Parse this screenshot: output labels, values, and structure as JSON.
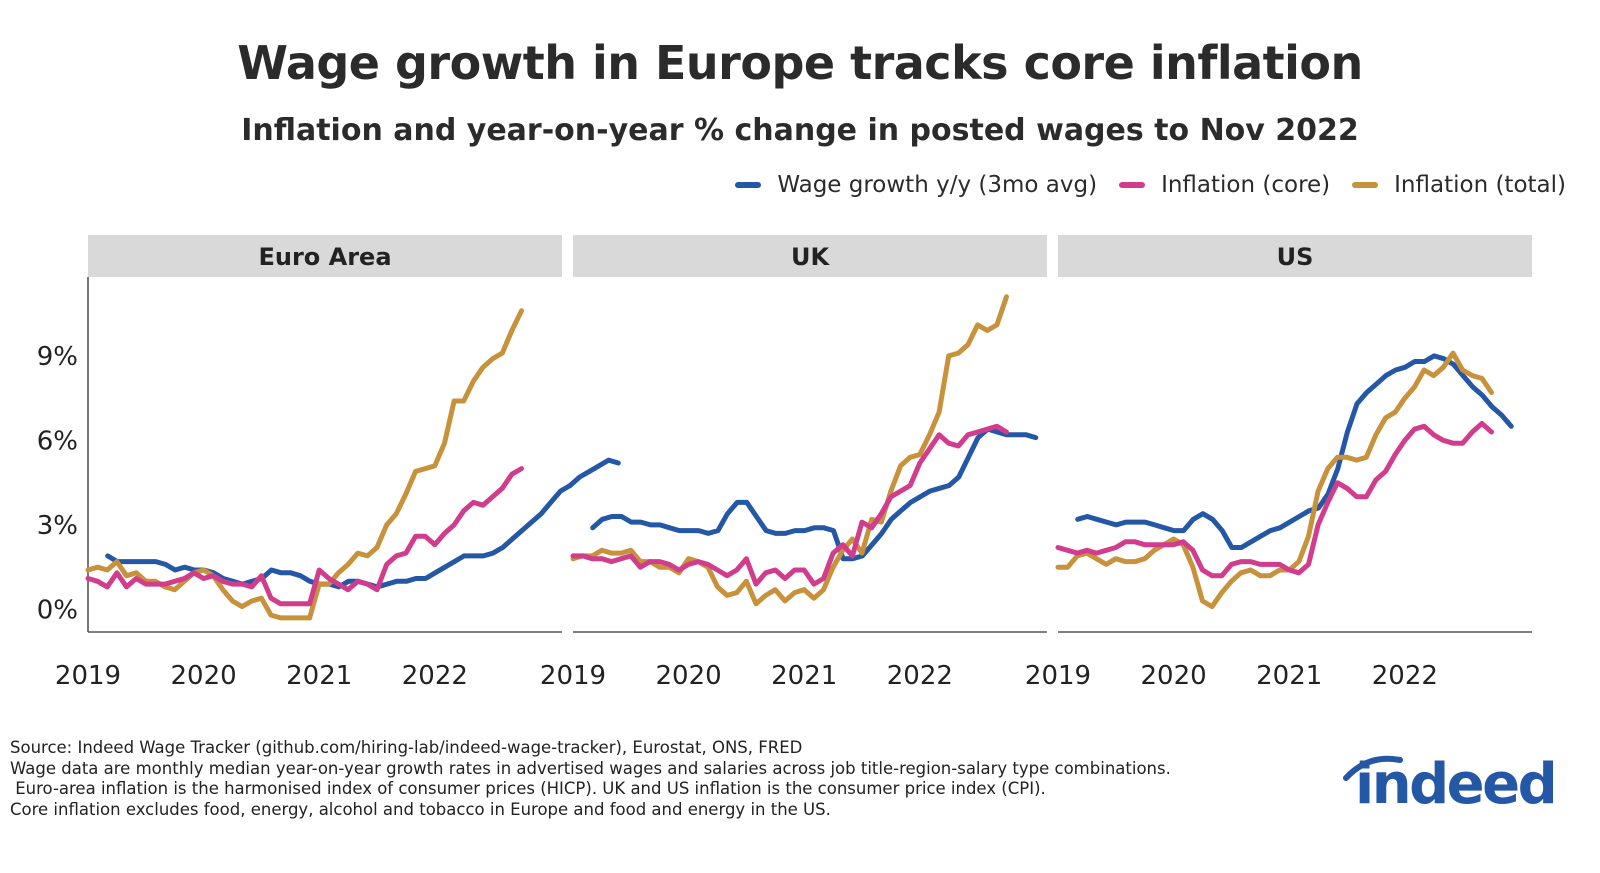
{
  "title": "Wage growth in Europe tracks core inflation",
  "subtitle": "Inflation and year-on-year % change in posted wages to Nov 2022",
  "legend": [
    {
      "label": "Wage growth y/y (3mo avg)",
      "color": "#2557a7"
    },
    {
      "label": "Inflation (core)",
      "color": "#d13d8c"
    },
    {
      "label": "Inflation (total)",
      "color": "#c8913b"
    }
  ],
  "notes": [
    "Source: Indeed Wage Tracker (github.com/hiring-lab/indeed-wage-tracker), Eurostat, ONS, FRED",
    "Wage data are monthly median year-on-year growth rates in advertised wages and salaries across job title-region-salary type combinations.",
    " Euro-area inflation is the harmonised index of consumer prices (HICP). UK and US inflation is the consumer price index (CPI).",
    "Core inflation excludes food, energy, alcohol and tobacco in Europe and food and energy in the US."
  ],
  "logo": "indeed",
  "chart_data": [
    {
      "type": "line",
      "panel": "Euro Area",
      "xlim": [
        2019,
        2023.1
      ],
      "ylim": [
        -0.8,
        11.8
      ],
      "x_ticks": [
        2019,
        2020,
        2021,
        2022
      ],
      "x_tick_labels": [
        "2019",
        "2020",
        "2021",
        "2022"
      ],
      "y_ticks": [
        0,
        3,
        6,
        9
      ],
      "y_tick_labels": [
        "0%",
        "3%",
        "6%",
        "9%"
      ],
      "series": [
        {
          "name": "Wage growth y/y (3mo avg)",
          "color": "#2557a7",
          "start": 2019.17,
          "values": [
            1.9,
            1.7,
            1.7,
            1.7,
            1.7,
            1.7,
            1.6,
            1.4,
            1.5,
            1.4,
            1.4,
            1.3,
            1.1,
            1.0,
            0.9,
            1.0,
            1.1,
            1.4,
            1.3,
            1.3,
            1.2,
            1.0,
            0.9,
            0.9,
            0.8,
            1.0,
            1.0,
            0.9,
            0.8,
            0.9,
            1.0,
            1.0,
            1.1,
            1.1,
            1.3,
            1.5,
            1.7,
            1.9,
            1.9,
            1.9,
            2.0,
            2.2,
            2.5,
            2.8,
            3.1,
            3.4,
            3.8,
            4.2,
            4.4,
            4.7,
            4.9,
            5.1,
            5.3,
            5.2
          ]
        },
        {
          "name": "Inflation (core)",
          "color": "#d13d8c",
          "start": 2019.0,
          "values": [
            1.1,
            1.0,
            0.8,
            1.3,
            0.8,
            1.1,
            0.9,
            0.9,
            0.9,
            1.0,
            1.1,
            1.3,
            1.1,
            1.2,
            1.0,
            0.9,
            0.9,
            0.8,
            1.2,
            0.4,
            0.2,
            0.2,
            0.2,
            0.2,
            1.4,
            1.1,
            0.9,
            0.7,
            1.0,
            0.9,
            0.7,
            1.6,
            1.9,
            2.0,
            2.6,
            2.6,
            2.3,
            2.7,
            3.0,
            3.5,
            3.8,
            3.7,
            4.0,
            4.3,
            4.8,
            5.0
          ]
        },
        {
          "name": "Inflation (total)",
          "color": "#c8913b",
          "start": 2019.0,
          "values": [
            1.4,
            1.5,
            1.4,
            1.7,
            1.2,
            1.3,
            1.0,
            1.0,
            0.8,
            0.7,
            1.0,
            1.3,
            1.4,
            1.2,
            0.7,
            0.3,
            0.1,
            0.3,
            0.4,
            -0.2,
            -0.3,
            -0.3,
            -0.3,
            -0.3,
            0.9,
            0.9,
            1.3,
            1.6,
            2.0,
            1.9,
            2.2,
            3.0,
            3.4,
            4.1,
            4.9,
            5.0,
            5.1,
            5.9,
            7.4,
            7.4,
            8.1,
            8.6,
            8.9,
            9.1,
            9.9,
            10.6
          ]
        }
      ]
    },
    {
      "type": "line",
      "panel": "UK",
      "xlim": [
        2019,
        2023.1
      ],
      "ylim": [
        -0.8,
        11.8
      ],
      "x_ticks": [
        2019,
        2020,
        2021,
        2022
      ],
      "x_tick_labels": [
        "2019",
        "2020",
        "2021",
        "2022"
      ],
      "y_ticks": [
        0,
        3,
        6,
        9
      ],
      "y_tick_labels": [
        "0%",
        "3%",
        "6%",
        "9%"
      ],
      "series": [
        {
          "name": "Wage growth y/y (3mo avg)",
          "color": "#2557a7",
          "start": 2019.17,
          "values": [
            2.9,
            3.2,
            3.3,
            3.3,
            3.1,
            3.1,
            3.0,
            3.0,
            2.9,
            2.8,
            2.8,
            2.8,
            2.7,
            2.8,
            3.4,
            3.8,
            3.8,
            3.3,
            2.8,
            2.7,
            2.7,
            2.8,
            2.8,
            2.9,
            2.9,
            2.8,
            1.8,
            1.8,
            1.9,
            2.3,
            2.7,
            3.2,
            3.5,
            3.8,
            4.0,
            4.2,
            4.3,
            4.4,
            4.7,
            5.4,
            6.1,
            6.4,
            6.3,
            6.2,
            6.2,
            6.2,
            6.1
          ]
        },
        {
          "name": "Inflation (core)",
          "color": "#d13d8c",
          "start": 2019.0,
          "values": [
            1.9,
            1.9,
            1.8,
            1.8,
            1.7,
            1.8,
            1.9,
            1.5,
            1.7,
            1.7,
            1.6,
            1.4,
            1.6,
            1.7,
            1.6,
            1.4,
            1.2,
            1.4,
            1.8,
            0.9,
            1.3,
            1.4,
            1.1,
            1.4,
            1.4,
            0.9,
            1.1,
            2.0,
            2.3,
            1.9,
            3.1,
            2.9,
            3.4,
            4.0,
            4.2,
            4.4,
            5.2,
            5.7,
            6.2,
            5.9,
            5.8,
            6.2,
            6.3,
            6.4,
            6.5,
            6.3
          ]
        },
        {
          "name": "Inflation (total)",
          "color": "#c8913b",
          "start": 2019.0,
          "values": [
            1.8,
            1.9,
            1.9,
            2.1,
            2.0,
            2.0,
            2.1,
            1.7,
            1.7,
            1.5,
            1.5,
            1.3,
            1.8,
            1.7,
            1.5,
            0.8,
            0.5,
            0.6,
            1.0,
            0.2,
            0.5,
            0.7,
            0.3,
            0.6,
            0.7,
            0.4,
            0.7,
            1.5,
            2.1,
            2.5,
            2.0,
            3.2,
            3.1,
            4.2,
            5.1,
            5.4,
            5.5,
            6.2,
            7.0,
            9.0,
            9.1,
            9.4,
            10.1,
            9.9,
            10.1,
            11.1
          ]
        }
      ]
    },
    {
      "type": "line",
      "panel": "US",
      "xlim": [
        2019,
        2023.1
      ],
      "ylim": [
        -0.8,
        11.8
      ],
      "x_ticks": [
        2019,
        2020,
        2021,
        2022
      ],
      "x_tick_labels": [
        "2019",
        "2020",
        "2021",
        "2022"
      ],
      "y_ticks": [
        0,
        3,
        6,
        9
      ],
      "y_tick_labels": [
        "0%",
        "3%",
        "6%",
        "9%"
      ],
      "series": [
        {
          "name": "Wage growth y/y (3mo avg)",
          "color": "#2557a7",
          "start": 2019.17,
          "values": [
            3.2,
            3.3,
            3.2,
            3.1,
            3.0,
            3.1,
            3.1,
            3.1,
            3.0,
            2.9,
            2.8,
            2.8,
            3.2,
            3.4,
            3.2,
            2.8,
            2.2,
            2.2,
            2.4,
            2.6,
            2.8,
            2.9,
            3.1,
            3.3,
            3.5,
            3.6,
            4.1,
            5.0,
            6.3,
            7.3,
            7.7,
            8.0,
            8.3,
            8.5,
            8.6,
            8.8,
            8.8,
            9.0,
            8.9,
            8.7,
            8.3,
            7.9,
            7.6,
            7.2,
            6.9,
            6.5
          ]
        },
        {
          "name": "Inflation (core)",
          "color": "#d13d8c",
          "start": 2019.0,
          "values": [
            2.2,
            2.1,
            2.0,
            2.1,
            2.0,
            2.1,
            2.2,
            2.4,
            2.4,
            2.3,
            2.3,
            2.3,
            2.3,
            2.4,
            2.1,
            1.4,
            1.2,
            1.2,
            1.6,
            1.7,
            1.7,
            1.6,
            1.6,
            1.6,
            1.4,
            1.3,
            1.6,
            3.0,
            3.8,
            4.5,
            4.3,
            4.0,
            4.0,
            4.6,
            4.9,
            5.5,
            6.0,
            6.4,
            6.5,
            6.2,
            6.0,
            5.9,
            5.9,
            6.3,
            6.6,
            6.3
          ]
        },
        {
          "name": "Inflation (total)",
          "color": "#c8913b",
          "start": 2019.0,
          "values": [
            1.5,
            1.5,
            1.9,
            2.0,
            1.8,
            1.6,
            1.8,
            1.7,
            1.7,
            1.8,
            2.1,
            2.3,
            2.5,
            2.3,
            1.5,
            0.3,
            0.1,
            0.6,
            1.0,
            1.3,
            1.4,
            1.2,
            1.2,
            1.4,
            1.4,
            1.7,
            2.6,
            4.2,
            5.0,
            5.4,
            5.4,
            5.3,
            5.4,
            6.2,
            6.8,
            7.0,
            7.5,
            7.9,
            8.5,
            8.3,
            8.6,
            9.1,
            8.5,
            8.3,
            8.2,
            7.7
          ]
        }
      ]
    }
  ]
}
